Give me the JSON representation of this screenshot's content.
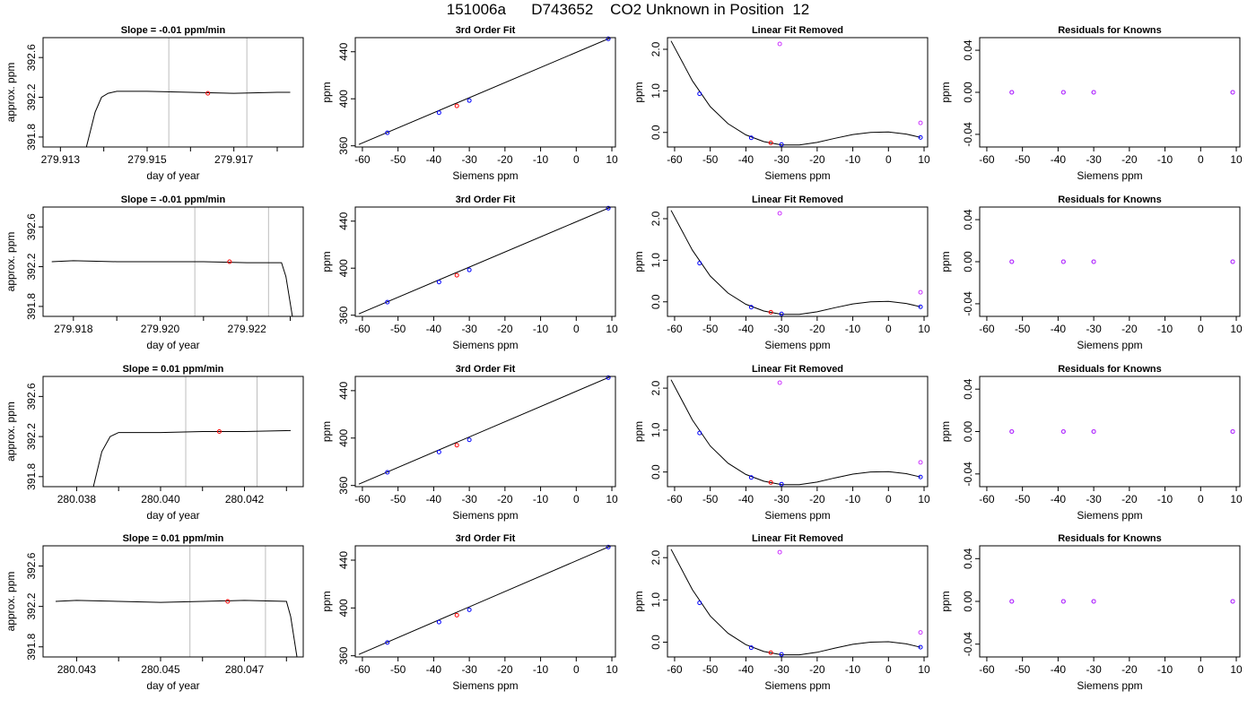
{
  "title": "151006a      D743652    CO2 Unknown in Position  12",
  "common": {
    "siemens_ticks": [
      -60,
      -50,
      -40,
      -30,
      -20,
      -10,
      0,
      10
    ],
    "siemens_xlim": [
      -62,
      11
    ],
    "fit_title": "3rd Order Fit",
    "lin_title": "Linear Fit Removed",
    "res_title": "Residuals for Knowns",
    "x_label": "Siemens ppm",
    "fit_ylabel": "ppm",
    "lin_ylabel": "ppm",
    "res_ylabel": "ppm",
    "fit_ylim": [
      359,
      452
    ],
    "fit_yticks": [
      360,
      400,
      440
    ],
    "fit_yticklabels": [
      "360",
      "400",
      "440"
    ],
    "lin_ylim": [
      -0.35,
      2.28
    ],
    "lin_yticks": [
      0.0,
      1.0,
      2.0
    ],
    "lin_yticklabels": [
      "0.0",
      "1.0",
      "2.0"
    ],
    "res_ylim": [
      -0.052,
      0.052
    ],
    "res_yticks": [
      -0.04,
      0.0,
      0.04
    ],
    "res_yticklabels": [
      "-0.04",
      "0.00",
      "0.04"
    ],
    "known_points": [
      {
        "x": -53,
        "y": 371.1
      },
      {
        "x": -38.5,
        "y": 388.2
      },
      {
        "x": -30,
        "y": 398.5
      },
      {
        "x": 9,
        "y": 451.0
      }
    ],
    "unknown_point": {
      "x": -33.5,
      "y": 394.0
    },
    "fit_line": [
      [
        -61,
        361.1
      ],
      [
        11,
        453.6
      ]
    ],
    "lin_known_points": [
      {
        "x": -53,
        "y": 0.93
      },
      {
        "x": -38.5,
        "y": -0.13
      },
      {
        "x": -30,
        "y": -0.29
      },
      {
        "x": 9,
        "y": -0.12
      }
    ],
    "lin_unknown_point": {
      "x": -33,
      "y": -0.25
    },
    "lin_extra_points": [
      {
        "x": -30.5,
        "y": 2.13
      },
      {
        "x": 9,
        "y": 0.23
      }
    ],
    "lin_curve": [
      [
        -61,
        2.2
      ],
      [
        -55,
        1.24
      ],
      [
        -50,
        0.62
      ],
      [
        -45,
        0.21
      ],
      [
        -40,
        -0.06
      ],
      [
        -35,
        -0.22
      ],
      [
        -30,
        -0.3
      ],
      [
        -25,
        -0.3
      ],
      [
        -20,
        -0.24
      ],
      [
        -15,
        -0.14
      ],
      [
        -10,
        -0.05
      ],
      [
        -5,
        0.0
      ],
      [
        0,
        0.01
      ],
      [
        5,
        -0.04
      ],
      [
        9,
        -0.12
      ]
    ],
    "res_points": [
      {
        "x": -53,
        "y": 0.0
      },
      {
        "x": -38.5,
        "y": 0.0
      },
      {
        "x": -30,
        "y": 0.0
      },
      {
        "x": 9,
        "y": 0.0
      }
    ],
    "time_ylabel": "approx. ppm",
    "time_xlabel": "day of year",
    "time_ylim": [
      391.7,
      392.8
    ],
    "time_yticks": [
      391.8,
      392.2,
      392.6
    ],
    "time_yticklabels": [
      "391.8",
      "392.2",
      "392.6"
    ]
  },
  "rows": [
    {
      "slope_title": "Slope =  -0.01  ppm/min",
      "xlim": [
        279.9126,
        279.9186
      ],
      "xticks": [
        279.913,
        279.914,
        279.915,
        279.916,
        279.917,
        279.918
      ],
      "xticklabels": [
        "279.913",
        "",
        "279.915",
        "",
        "279.917",
        ""
      ],
      "vlines": [
        279.9155,
        279.9173
      ],
      "red_point": {
        "x": 279.9164,
        "y": 392.24
      },
      "trace": [
        [
          279.9136,
          391.7
        ],
        [
          279.9138,
          392.05
        ],
        [
          279.91395,
          392.2
        ],
        [
          279.9141,
          392.24
        ],
        [
          279.9143,
          392.26
        ],
        [
          279.915,
          392.26
        ],
        [
          279.916,
          392.25
        ],
        [
          279.917,
          392.24
        ],
        [
          279.918,
          392.25
        ],
        [
          279.9183,
          392.25
        ]
      ]
    },
    {
      "slope_title": "Slope =  -0.01  ppm/min",
      "xlim": [
        279.9173,
        279.9233
      ],
      "xticks": [
        279.918,
        279.919,
        279.92,
        279.921,
        279.922,
        279.923
      ],
      "xticklabels": [
        "279.918",
        "",
        "279.920",
        "",
        "279.922",
        ""
      ],
      "vlines": [
        279.9208,
        279.9225
      ],
      "red_point": {
        "x": 279.9216,
        "y": 392.25
      },
      "trace": [
        [
          279.9175,
          392.25
        ],
        [
          279.918,
          392.26
        ],
        [
          279.919,
          392.25
        ],
        [
          279.92,
          392.25
        ],
        [
          279.921,
          392.25
        ],
        [
          279.922,
          392.24
        ],
        [
          279.9228,
          392.24
        ],
        [
          279.9229,
          392.1
        ],
        [
          279.92305,
          391.7
        ]
      ]
    },
    {
      "slope_title": "Slope =  0.01  ppm/min",
      "xlim": [
        280.0372,
        280.0434
      ],
      "xticks": [
        280.038,
        280.039,
        280.04,
        280.041,
        280.042,
        280.043
      ],
      "xticklabels": [
        "280.038",
        "",
        "280.040",
        "",
        "280.042",
        ""
      ],
      "vlines": [
        280.0406,
        280.0423
      ],
      "red_point": {
        "x": 280.0414,
        "y": 392.25
      },
      "trace": [
        [
          280.0384,
          391.7
        ],
        [
          280.0386,
          392.05
        ],
        [
          280.0388,
          392.2
        ],
        [
          280.039,
          392.24
        ],
        [
          280.04,
          392.24
        ],
        [
          280.041,
          392.25
        ],
        [
          280.042,
          392.25
        ],
        [
          280.0431,
          392.26
        ]
      ]
    },
    {
      "slope_title": "Slope =  0.01  ppm/min",
      "xlim": [
        280.0422,
        280.0484
      ],
      "xticks": [
        280.043,
        280.044,
        280.045,
        280.046,
        280.047,
        280.048
      ],
      "xticklabels": [
        "280.043",
        "",
        "280.045",
        "",
        "280.047",
        ""
      ],
      "vlines": [
        280.0457,
        280.0475
      ],
      "red_point": {
        "x": 280.0466,
        "y": 392.25
      },
      "trace": [
        [
          280.0425,
          392.25
        ],
        [
          280.043,
          392.26
        ],
        [
          280.044,
          392.25
        ],
        [
          280.045,
          392.24
        ],
        [
          280.046,
          392.25
        ],
        [
          280.047,
          392.26
        ],
        [
          280.048,
          392.25
        ],
        [
          280.0481,
          392.1
        ],
        [
          280.04825,
          391.7
        ]
      ]
    }
  ],
  "chart_data": [
    {
      "type": "line",
      "title": "Slope =  -0.01  ppm/min",
      "xlabel": "day of year",
      "ylabel": "approx. ppm",
      "xlim": [
        279.9126,
        279.9186
      ],
      "ylim": [
        391.7,
        392.8
      ],
      "series": [
        {
          "x": [
            279.9136,
            279.9141,
            279.915,
            279.916,
            279.917,
            279.9183
          ],
          "y": [
            391.7,
            392.24,
            392.26,
            392.25,
            392.24,
            392.25
          ]
        }
      ]
    },
    {
      "type": "scatter",
      "title": "3rd Order Fit",
      "xlabel": "Siemens ppm",
      "ylabel": "ppm",
      "series": [
        {
          "x": [
            -53,
            -38.5,
            -30,
            9
          ],
          "y": [
            371.1,
            388.2,
            398.5,
            451.0
          ]
        },
        {
          "x": [
            -33.5
          ],
          "y": [
            394.0
          ]
        }
      ]
    },
    {
      "type": "scatter",
      "title": "Linear Fit Removed",
      "xlabel": "Siemens ppm",
      "ylabel": "ppm",
      "series": [
        {
          "x": [
            -53,
            -38.5,
            -30,
            9
          ],
          "y": [
            0.93,
            -0.13,
            -0.29,
            -0.12
          ]
        },
        {
          "x": [
            -30.5,
            9
          ],
          "y": [
            2.13,
            0.23
          ]
        },
        {
          "x": [
            -33
          ],
          "y": [
            -0.25
          ]
        }
      ]
    },
    {
      "type": "scatter",
      "title": "Residuals for Knowns",
      "xlabel": "Siemens ppm",
      "ylabel": "ppm",
      "series": [
        {
          "x": [
            -53,
            -38.5,
            -30,
            9
          ],
          "y": [
            0.0,
            0.0,
            0.0,
            0.0
          ]
        }
      ]
    }
  ]
}
